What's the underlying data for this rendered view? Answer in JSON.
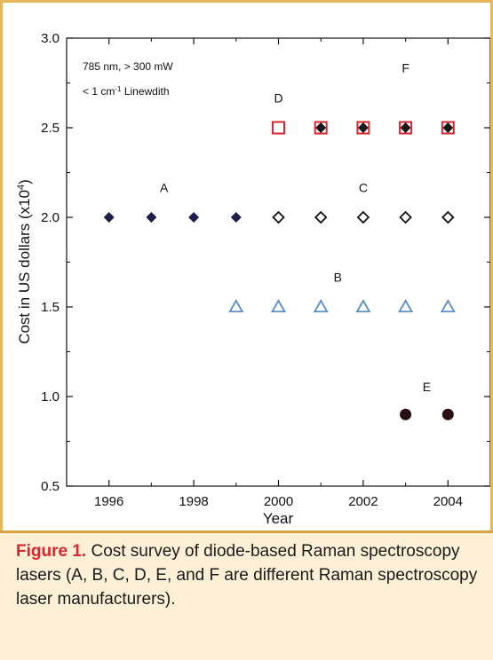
{
  "chart_data": {
    "type": "scatter",
    "xlabel": "Year",
    "ylabel": "Cost in US dollars (x10",
    "ylabel_sup": "4",
    "ylabel_end": ")",
    "xlim": [
      1995,
      2005
    ],
    "ylim": [
      0.5,
      3.0
    ],
    "xticks": [
      1996,
      1998,
      2000,
      2002,
      2004
    ],
    "yticks": [
      0.5,
      1.0,
      1.5,
      2.0,
      2.5,
      3.0
    ],
    "ytick_labels": [
      "0.5",
      "1.0",
      "1.5",
      "2.0",
      "2.5",
      "3.0"
    ],
    "annotation_line1": "785 nm, > 300 mW",
    "annotation_line2_pre": "< 1 cm",
    "annotation_line2_sup": "-1",
    "annotation_line2_post": " Linewdith",
    "grid": false,
    "series": [
      {
        "name": "A",
        "marker": "filled-diamond",
        "color": "#1c1f4a",
        "label_at": [
          1997.3,
          2.14
        ],
        "points": [
          [
            1996,
            2.0
          ],
          [
            1997,
            2.0
          ],
          [
            1998,
            2.0
          ],
          [
            1999,
            2.0
          ]
        ]
      },
      {
        "name": "B",
        "marker": "open-triangle",
        "color": "#5b8fc4",
        "label_at": [
          2001.4,
          1.64
        ],
        "points": [
          [
            1999,
            1.5
          ],
          [
            2000,
            1.5
          ],
          [
            2001,
            1.5
          ],
          [
            2002,
            1.5
          ],
          [
            2003,
            1.5
          ],
          [
            2004,
            1.5
          ]
        ]
      },
      {
        "name": "C",
        "marker": "open-diamond",
        "color": "#111111",
        "label_at": [
          2002.0,
          2.14
        ],
        "points": [
          [
            2000,
            2.0
          ],
          [
            2001,
            2.0
          ],
          [
            2002,
            2.0
          ],
          [
            2003,
            2.0
          ],
          [
            2004,
            2.0
          ]
        ]
      },
      {
        "name": "D",
        "marker": "open-square",
        "color": "#d9262e",
        "label_at": [
          2000.0,
          2.64
        ],
        "points": [
          [
            2000,
            2.5
          ],
          [
            2001,
            2.5
          ],
          [
            2002,
            2.5
          ],
          [
            2003,
            2.5
          ],
          [
            2004,
            2.5
          ]
        ]
      },
      {
        "name": "E",
        "marker": "filled-circle",
        "color": "#2a0f12",
        "label_at": [
          2003.5,
          1.03
        ],
        "points": [
          [
            2003,
            0.9
          ],
          [
            2004,
            0.9
          ]
        ]
      },
      {
        "name": "F",
        "marker": "filled-diamond",
        "color": "#1a1a1a",
        "label_at": [
          2003.0,
          2.81
        ],
        "points": [
          [
            2001,
            2.5
          ],
          [
            2002,
            2.5
          ],
          [
            2003,
            2.5
          ],
          [
            2004,
            2.5
          ]
        ]
      }
    ]
  },
  "caption": {
    "label": "Figure 1.",
    "text": " Cost survey of diode-based Raman spectroscopy lasers (A, B, C, D, E, and F are different Raman spectroscopy laser manufacturers)."
  }
}
